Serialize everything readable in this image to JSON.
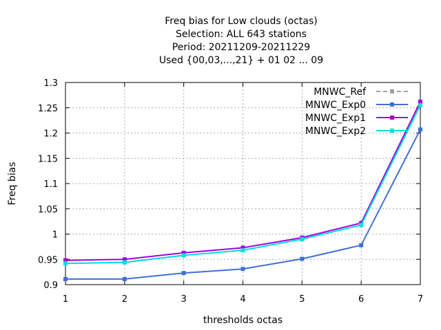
{
  "chart_data": {
    "type": "line",
    "title_lines": [
      "Freq bias  for Low clouds (octas)",
      "Selection: ALL    643 stations",
      "Period: 20211209-20211229",
      "Used {00,03,...,21} + 01 02 ... 09"
    ],
    "xlabel": "thresholds octas",
    "ylabel": "Freq bias",
    "x": [
      1,
      2,
      3,
      4,
      5,
      6,
      7
    ],
    "xlim": [
      1,
      7
    ],
    "ylim": [
      0.9,
      1.3
    ],
    "xticks": [
      "1",
      "2",
      "3",
      "4",
      "5",
      "6",
      "7"
    ],
    "yticks": [
      "0.9",
      "0.95",
      "1",
      "1.05",
      "1.1",
      "1.15",
      "1.2",
      "1.25",
      "1.3"
    ],
    "grid": true,
    "legend_position": "top-right",
    "series": [
      {
        "name": "MNWC_Ref",
        "color": "#a0a0a0",
        "dashed": true,
        "values": [
          0.942,
          0.944,
          0.958,
          0.968,
          0.99,
          1.018,
          1.255
        ]
      },
      {
        "name": "MNWC_Exp0",
        "color": "#3f6fd6",
        "dashed": false,
        "values": [
          0.911,
          0.911,
          0.923,
          0.931,
          0.951,
          0.978,
          1.207
        ]
      },
      {
        "name": "MNWC_Exp1",
        "color": "#a000e0",
        "dashed": false,
        "values": [
          0.948,
          0.95,
          0.963,
          0.973,
          0.993,
          1.022,
          1.262
        ]
      },
      {
        "name": "MNWC_Exp2",
        "color": "#00e0e0",
        "dashed": false,
        "values": [
          0.942,
          0.944,
          0.958,
          0.968,
          0.99,
          1.018,
          1.255
        ]
      }
    ]
  }
}
